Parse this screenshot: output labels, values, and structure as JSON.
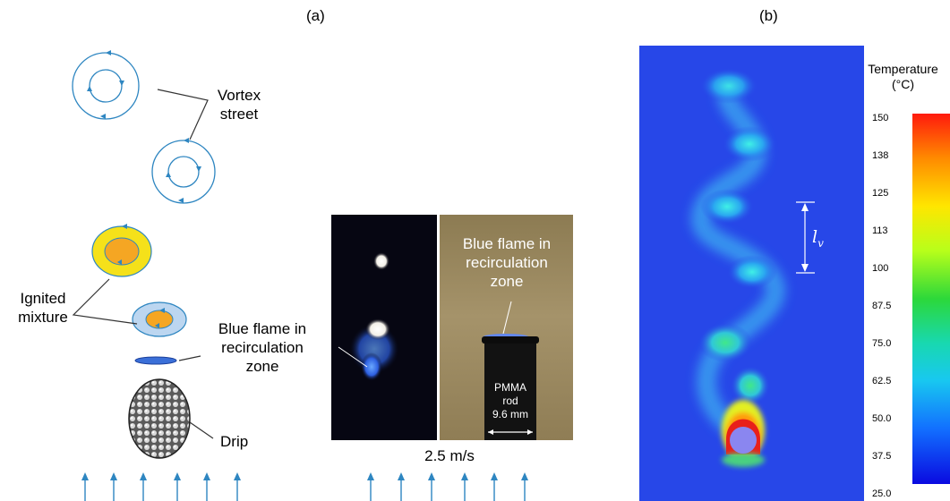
{
  "panel_a": {
    "label": "(a)",
    "vortex_label": [
      "Vortex",
      "street"
    ],
    "ignited_label": [
      "Ignited",
      "mixture"
    ],
    "blue_flame_label": [
      "Blue flame in",
      "recirculation",
      "zone"
    ],
    "drip_label": "Drip",
    "photo_right_label": [
      "Blue flame in",
      "recirculation",
      "zone"
    ],
    "pmma_label": [
      "PMMA",
      "rod",
      "9.6 mm"
    ],
    "velocity_label": "2.5 m/s",
    "colors": {
      "vortex": "#2e86c1",
      "ignited_outer": "#f5e11a",
      "ignited_inner": "#f5a623",
      "ignited_ring_light": "#bcd6f0",
      "drip_disc": "#3a6fd8"
    }
  },
  "panel_b": {
    "label": "(b)",
    "lv_symbol": "l",
    "lv_subscript": "v",
    "colorbar": {
      "title": "Temperature",
      "unit": "(°C)",
      "ticks": [
        "150",
        "138",
        "125",
        "113",
        "100",
        "87.5",
        "75.0",
        "62.5",
        "50.0",
        "37.5",
        "25.0"
      ],
      "min": 25.0,
      "max": 150
    },
    "colors": {
      "background_field": "#2747e8"
    }
  }
}
